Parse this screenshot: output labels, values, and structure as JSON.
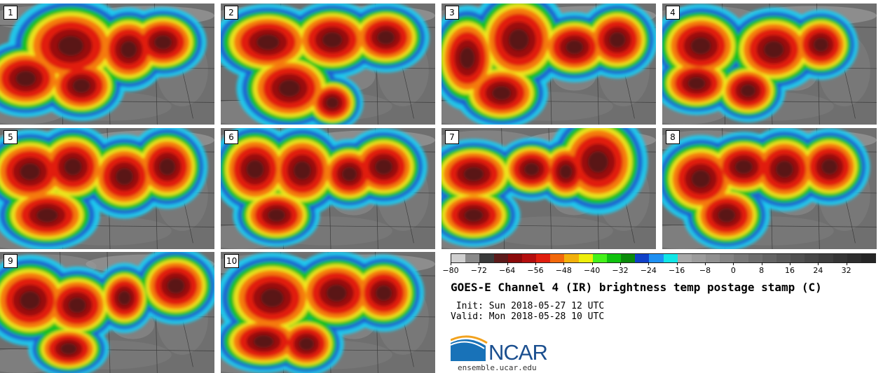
{
  "panels": [
    {
      "label": "1",
      "blobs": [
        [
          0.33,
          0.35,
          0.2,
          0.28
        ],
        [
          0.6,
          0.38,
          0.13,
          0.24
        ],
        [
          0.76,
          0.32,
          0.14,
          0.2
        ],
        [
          0.12,
          0.62,
          0.16,
          0.22
        ],
        [
          0.38,
          0.68,
          0.14,
          0.2
        ]
      ]
    },
    {
      "label": "2",
      "blobs": [
        [
          0.22,
          0.32,
          0.18,
          0.22
        ],
        [
          0.52,
          0.3,
          0.16,
          0.22
        ],
        [
          0.77,
          0.28,
          0.14,
          0.2
        ],
        [
          0.32,
          0.7,
          0.17,
          0.24
        ],
        [
          0.52,
          0.82,
          0.1,
          0.16
        ]
      ]
    },
    {
      "label": "3",
      "blobs": [
        [
          0.12,
          0.45,
          0.12,
          0.3
        ],
        [
          0.36,
          0.3,
          0.16,
          0.3
        ],
        [
          0.62,
          0.36,
          0.14,
          0.2
        ],
        [
          0.82,
          0.3,
          0.13,
          0.22
        ],
        [
          0.28,
          0.74,
          0.15,
          0.2
        ]
      ]
    },
    {
      "label": "4",
      "blobs": [
        [
          0.18,
          0.35,
          0.16,
          0.24
        ],
        [
          0.52,
          0.38,
          0.16,
          0.24
        ],
        [
          0.74,
          0.34,
          0.12,
          0.2
        ],
        [
          0.16,
          0.66,
          0.14,
          0.18
        ],
        [
          0.4,
          0.72,
          0.12,
          0.18
        ]
      ]
    },
    {
      "label": "5",
      "blobs": [
        [
          0.14,
          0.36,
          0.16,
          0.24
        ],
        [
          0.34,
          0.32,
          0.14,
          0.24
        ],
        [
          0.58,
          0.4,
          0.14,
          0.24
        ],
        [
          0.78,
          0.32,
          0.13,
          0.24
        ],
        [
          0.22,
          0.72,
          0.17,
          0.2
        ]
      ]
    },
    {
      "label": "6",
      "blobs": [
        [
          0.16,
          0.34,
          0.14,
          0.26
        ],
        [
          0.38,
          0.35,
          0.14,
          0.26
        ],
        [
          0.6,
          0.38,
          0.12,
          0.2
        ],
        [
          0.76,
          0.32,
          0.14,
          0.22
        ],
        [
          0.26,
          0.72,
          0.14,
          0.18
        ]
      ]
    },
    {
      "label": "7",
      "blobs": [
        [
          0.15,
          0.38,
          0.16,
          0.2
        ],
        [
          0.42,
          0.34,
          0.12,
          0.18
        ],
        [
          0.58,
          0.36,
          0.1,
          0.2
        ],
        [
          0.73,
          0.28,
          0.16,
          0.3
        ],
        [
          0.15,
          0.72,
          0.15,
          0.18
        ]
      ]
    },
    {
      "label": "8",
      "blobs": [
        [
          0.18,
          0.42,
          0.15,
          0.25
        ],
        [
          0.38,
          0.32,
          0.14,
          0.2
        ],
        [
          0.57,
          0.34,
          0.14,
          0.24
        ],
        [
          0.78,
          0.32,
          0.13,
          0.22
        ],
        [
          0.3,
          0.72,
          0.14,
          0.2
        ]
      ]
    },
    {
      "label": "9",
      "blobs": [
        [
          0.14,
          0.4,
          0.16,
          0.26
        ],
        [
          0.36,
          0.44,
          0.14,
          0.22
        ],
        [
          0.58,
          0.38,
          0.1,
          0.2
        ],
        [
          0.82,
          0.28,
          0.14,
          0.22
        ],
        [
          0.32,
          0.8,
          0.13,
          0.16
        ]
      ]
    },
    {
      "label": "10",
      "blobs": [
        [
          0.24,
          0.38,
          0.18,
          0.26
        ],
        [
          0.54,
          0.34,
          0.16,
          0.24
        ],
        [
          0.76,
          0.34,
          0.13,
          0.22
        ],
        [
          0.2,
          0.74,
          0.16,
          0.18
        ],
        [
          0.4,
          0.76,
          0.12,
          0.18
        ]
      ]
    }
  ],
  "colorbar": {
    "colors": [
      "#cfcfcf",
      "#8a8a8a",
      "#3a3a3a",
      "#5c1a1a",
      "#8b0a0a",
      "#b40e0e",
      "#e01e0e",
      "#f2680a",
      "#f2b00a",
      "#eeee0a",
      "#44f21a",
      "#10c20e",
      "#0a8a0a",
      "#1040c8",
      "#1e90f2",
      "#10e6e6",
      "#a8a8a8",
      "#9c9c9c",
      "#909090",
      "#848484",
      "#787878",
      "#6e6e6e",
      "#646464",
      "#5a5a5a",
      "#505050",
      "#474747",
      "#3e3e3e",
      "#353535",
      "#2d2d2d",
      "#252525"
    ],
    "tick_labels": [
      "−80",
      "−72",
      "−64",
      "−56",
      "−48",
      "−40",
      "−32",
      "−24",
      "−16",
      "−8",
      "0",
      "8",
      "16",
      "24",
      "32"
    ]
  },
  "title": "GOES-E Channel 4 (IR) brightness temp postage stamp (C)",
  "init": " Init: Sun 2018-05-27 12 UTC",
  "valid": "Valid: Mon 2018-05-28 10 UTC",
  "logo_text": "NCAR",
  "site": "ensemble.ucar.edu"
}
